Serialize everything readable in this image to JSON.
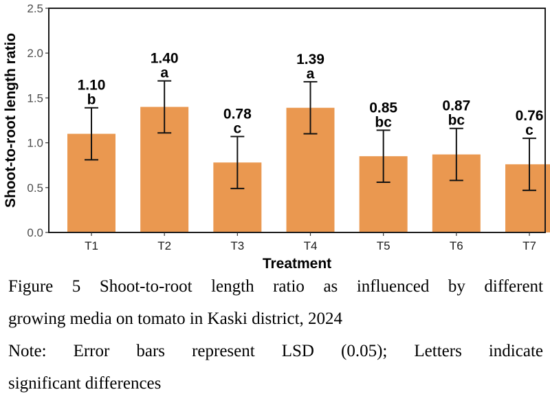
{
  "chart_data": {
    "type": "bar",
    "title": "",
    "xlabel": "Treatment",
    "ylabel": "Shoot-to-root length ratio",
    "ylim": [
      0,
      2.5
    ],
    "yticks": [
      "0.0",
      "0.5",
      "1.0",
      "1.5",
      "2.0",
      "2.5"
    ],
    "ytick_values": [
      0,
      0.5,
      1.0,
      1.5,
      2.0,
      2.5
    ],
    "categories": [
      "T1",
      "T2",
      "T3",
      "T4",
      "T5",
      "T6",
      "T7"
    ],
    "values": [
      1.1,
      1.4,
      0.78,
      1.39,
      0.85,
      0.87,
      0.76
    ],
    "value_labels": [
      "1.10",
      "1.40",
      "0.78",
      "1.39",
      "0.85",
      "0.87",
      "0.76"
    ],
    "letters": [
      "b",
      "a",
      "c",
      "a",
      "bc",
      "bc",
      "c"
    ],
    "error_half_width": 0.29,
    "error_bar_meaning": "LSD (0.05)",
    "bar_color": "#EA9850",
    "grid": false,
    "legend": "none"
  },
  "caption": {
    "figure_lines": [
      "Figure 5 Shoot-to-root length ratio as influenced by different",
      "growing media on tomato in Kaski district, 2024"
    ],
    "note_lines": [
      "Note: Error bars represent LSD (0.05); Letters indicate",
      "significant differences"
    ]
  }
}
